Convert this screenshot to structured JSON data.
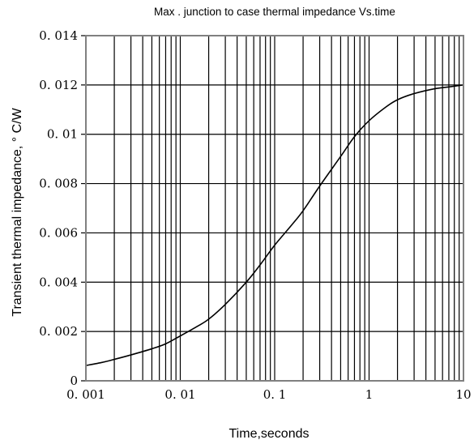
{
  "chart_data": {
    "type": "line",
    "title": "Max . junction to case thermal impedance Vs.time",
    "xlabel": "Time,seconds",
    "ylabel": "Transient thermal impedance, ° C/W",
    "x_scale": "log",
    "xlim": [
      0.001,
      10
    ],
    "ylim": [
      0,
      0.014
    ],
    "grid": true,
    "x_ticks": [
      "0. 001",
      "0. 01",
      "0. 1",
      "1",
      "10"
    ],
    "y_ticks": [
      "0",
      "0. 002",
      "0. 004",
      "0. 006",
      "0. 008",
      "0. 01",
      "0. 012",
      "0. 014"
    ],
    "series": [
      {
        "x": [
          0.001,
          0.0015,
          0.002,
          0.003,
          0.005,
          0.007,
          0.01,
          0.015,
          0.02,
          0.03,
          0.05,
          0.07,
          0.1,
          0.15,
          0.2,
          0.3,
          0.5,
          0.7,
          1,
          1.5,
          2,
          3,
          5,
          7,
          10
        ],
        "y": [
          0.00062,
          0.00075,
          0.00087,
          0.00105,
          0.0013,
          0.0015,
          0.00182,
          0.0022,
          0.0025,
          0.0031,
          0.004,
          0.0047,
          0.0055,
          0.0063,
          0.0069,
          0.0079,
          0.0091,
          0.0099,
          0.01055,
          0.0111,
          0.0114,
          0.01165,
          0.01185,
          0.01192,
          0.012
        ],
        "color": "#000000"
      }
    ]
  }
}
